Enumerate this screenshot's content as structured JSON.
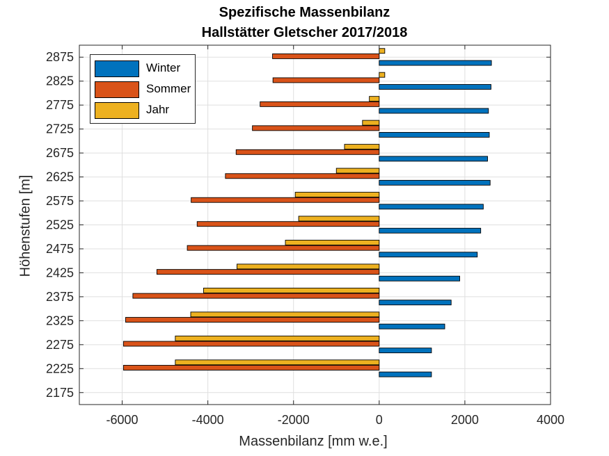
{
  "colors": {
    "Winter": "#0072BD",
    "Sommer": "#D95319",
    "Jahr": "#EDB120"
  },
  "chart_data": {
    "type": "bar",
    "orientation": "horizontal",
    "title": "Spezifische Massenbilanz",
    "subtitle": "Hallstätter Gletscher 2017/2018",
    "xlabel": "Massenbilanz [mm w.e.]",
    "ylabel": "Höhenstufen [m]",
    "xlim": [
      -7000,
      4000
    ],
    "ylim": [
      2150,
      2900
    ],
    "xticks": [
      "-6000",
      "-4000",
      "-2000",
      "0",
      "2000",
      "4000"
    ],
    "yticks": [
      "2175",
      "2225",
      "2275",
      "2325",
      "2375",
      "2425",
      "2475",
      "2525",
      "2575",
      "2625",
      "2675",
      "2725",
      "2775",
      "2825",
      "2875"
    ],
    "grid": true,
    "legend_position": "top-left",
    "categories": [
      2875,
      2825,
      2775,
      2725,
      2675,
      2625,
      2575,
      2525,
      2475,
      2425,
      2375,
      2325,
      2275,
      2225
    ],
    "series": [
      {
        "name": "Winter",
        "values": [
          2620,
          2610,
          2550,
          2570,
          2530,
          2590,
          2430,
          2370,
          2290,
          1880,
          1680,
          1530,
          1220,
          1220
        ]
      },
      {
        "name": "Sommer",
        "values": [
          -2490,
          -2480,
          -2780,
          -2960,
          -3340,
          -3590,
          -4390,
          -4250,
          -4480,
          -5190,
          -5750,
          -5920,
          -5970,
          -5970
        ]
      },
      {
        "name": "Jahr",
        "values": [
          130,
          130,
          -230,
          -390,
          -810,
          -1000,
          -1960,
          -1880,
          -2190,
          -3320,
          -4100,
          -4400,
          -4760,
          -4760
        ]
      }
    ]
  }
}
